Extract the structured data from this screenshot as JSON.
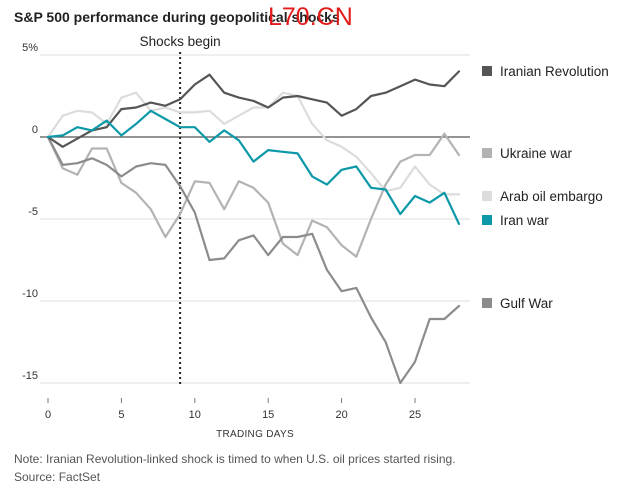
{
  "watermark": "L70.CN",
  "note": "Note: Iranian Revolution-linked shock is timed to when U.S. oil prices started rising.",
  "source": "Source: FactSet",
  "chart_data": {
    "type": "line",
    "title": "S&P 500 performance during geopolitical shocks",
    "xlabel": "TRADING DAYS",
    "ylabel": "",
    "xlim": [
      0,
      28
    ],
    "ylim": [
      -16,
      6
    ],
    "x_ticks": [
      0,
      5,
      10,
      15,
      20,
      25
    ],
    "y_ticks": [
      {
        "value": 5,
        "label": "5%"
      },
      {
        "value": 0,
        "label": "0"
      },
      {
        "value": -5,
        "label": "-5"
      },
      {
        "value": -10,
        "label": "-10"
      },
      {
        "value": -15,
        "label": "-15"
      }
    ],
    "grid": "horizontal",
    "zero_line": true,
    "legend": "right",
    "annotation": {
      "x": 9,
      "label": "Shocks begin"
    },
    "x": [
      0,
      1,
      2,
      3,
      4,
      5,
      6,
      7,
      8,
      9,
      10,
      11,
      12,
      13,
      14,
      15,
      16,
      17,
      18,
      19,
      20,
      21,
      22,
      23,
      24,
      25,
      26,
      27,
      28
    ],
    "series": [
      {
        "name": "Iranian Revolution",
        "color": "#555555",
        "values": [
          0,
          -0.6,
          -0.1,
          0.4,
          0.6,
          1.7,
          1.8,
          2.1,
          1.9,
          2.3,
          3.2,
          3.8,
          2.7,
          2.4,
          2.2,
          1.8,
          2.4,
          2.5,
          2.3,
          2.1,
          1.3,
          1.7,
          2.5,
          2.7,
          3.1,
          3.5,
          3.2,
          3.1,
          4.0
        ]
      },
      {
        "name": "Ukraine war",
        "color": "#b3b3b3",
        "values": [
          0,
          -1.9,
          -2.3,
          -0.7,
          -0.7,
          -2.8,
          -3.4,
          -4.4,
          -6.1,
          -4.7,
          -2.7,
          -2.8,
          -4.4,
          -2.7,
          -3.1,
          -4.0,
          -6.5,
          -7.2,
          -5.1,
          -5.5,
          -6.6,
          -7.3,
          -5.0,
          -2.9,
          -1.5,
          -1.1,
          -1.1,
          0.2,
          -1.1
        ]
      },
      {
        "name": "Arab oil embargo",
        "color": "#dcdcdc",
        "values": [
          0,
          1.3,
          1.6,
          1.5,
          0.8,
          2.4,
          2.7,
          1.6,
          1.8,
          1.5,
          1.5,
          1.6,
          0.8,
          1.3,
          1.8,
          1.8,
          2.7,
          2.5,
          0.8,
          -0.2,
          -0.6,
          -1.2,
          -2.2,
          -3.3,
          -3.1,
          -1.8,
          -2.9,
          -3.5,
          -3.5
        ]
      },
      {
        "name": "Iran war",
        "color": "#0b98a8",
        "values": [
          0,
          0.1,
          0.6,
          0.4,
          1.0,
          0.1,
          0.8,
          1.6,
          1.1,
          0.6,
          0.6,
          -0.3,
          0.4,
          -0.2,
          -1.5,
          -0.8,
          -0.9,
          -1.0,
          -2.4,
          -2.9,
          -2.0,
          -1.8,
          -3.1,
          -3.2,
          -4.7,
          -3.6,
          -4.0,
          -3.4,
          -5.3
        ]
      },
      {
        "name": "Gulf War",
        "color": "#8c8c8c",
        "values": [
          0,
          -1.7,
          -1.6,
          -1.3,
          -1.7,
          -2.4,
          -1.8,
          -1.6,
          -1.7,
          -3.0,
          -4.6,
          -7.5,
          -7.4,
          -6.3,
          -6.0,
          -7.2,
          -6.1,
          -6.1,
          -5.9,
          -8.1,
          -9.4,
          -9.2,
          -11.0,
          -12.5,
          -15.0,
          -13.7,
          -11.1,
          -11.1,
          -10.3
        ]
      }
    ]
  }
}
